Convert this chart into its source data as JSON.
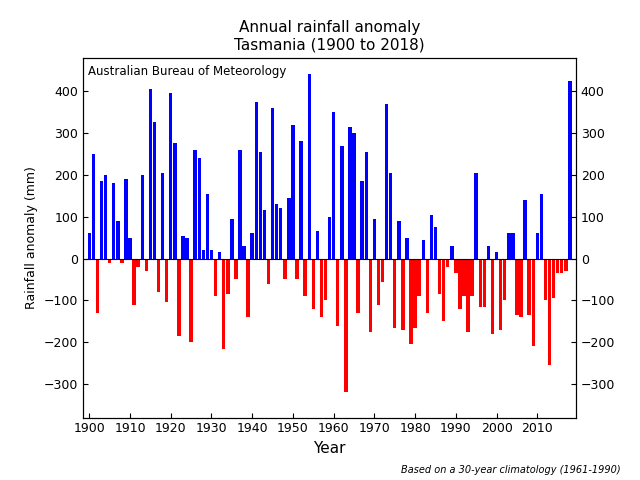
{
  "title": "Annual rainfall anomaly\nTasmania (1900 to 2018)",
  "xlabel": "Year",
  "ylabel": "Rainfall anomaly (mm)",
  "annotation_text": "Australian Bureau of Meteorology",
  "footnote": "Based on a 30-year climatology (1961-1990)",
  "bar_color_positive": "#0000FF",
  "bar_color_negative": "#FF0000",
  "ylim": [
    -380,
    480
  ],
  "yticks": [
    -300,
    -200,
    -100,
    0,
    100,
    200,
    300,
    400
  ],
  "xticks": [
    1900,
    1910,
    1920,
    1930,
    1940,
    1950,
    1960,
    1970,
    1980,
    1990,
    2000,
    2010
  ],
  "values": {
    "1900": 60,
    "1901": 250,
    "1902": -130,
    "1903": 185,
    "1904": 200,
    "1905": -10,
    "1906": 180,
    "1907": 90,
    "1908": -10,
    "1909": 190,
    "1910": 50,
    "1911": -110,
    "1912": -20,
    "1913": 200,
    "1914": -30,
    "1915": 405,
    "1916": 325,
    "1917": -80,
    "1918": 205,
    "1919": -105,
    "1920": 395,
    "1921": 275,
    "1922": -185,
    "1923": 55,
    "1924": 50,
    "1925": -200,
    "1926": 260,
    "1927": 240,
    "1928": 20,
    "1929": 155,
    "1930": 20,
    "1931": -90,
    "1932": 15,
    "1933": -215,
    "1934": -85,
    "1935": 95,
    "1936": -50,
    "1937": 260,
    "1938": 30,
    "1939": -140,
    "1940": 60,
    "1941": 375,
    "1942": 255,
    "1943": 115,
    "1944": -60,
    "1945": 360,
    "1946": 130,
    "1947": 120,
    "1948": -50,
    "1949": 145,
    "1950": 320,
    "1951": -50,
    "1952": 280,
    "1953": -90,
    "1954": 440,
    "1955": -120,
    "1956": 65,
    "1957": -140,
    "1958": -100,
    "1959": 100,
    "1960": 350,
    "1961": -160,
    "1962": 270,
    "1963": -320,
    "1964": 315,
    "1965": 300,
    "1966": -130,
    "1967": 185,
    "1968": 255,
    "1969": -175,
    "1970": 95,
    "1971": -110,
    "1972": -55,
    "1973": 370,
    "1974": 205,
    "1975": -165,
    "1976": 90,
    "1977": -170,
    "1978": 50,
    "1979": -205,
    "1980": -165,
    "1981": -90,
    "1982": 45,
    "1983": -130,
    "1984": 105,
    "1985": 75,
    "1986": -85,
    "1987": -150,
    "1988": -20,
    "1989": 30,
    "1990": -35,
    "1991": -120,
    "1992": -90,
    "1993": -175,
    "1994": -90,
    "1995": 205,
    "1996": -115,
    "1997": -115,
    "1998": 30,
    "1999": -180,
    "2000": 15,
    "2001": -170,
    "2002": -100,
    "2003": 60,
    "2004": 60,
    "2005": -135,
    "2006": -140,
    "2007": 140,
    "2008": -135,
    "2009": -210,
    "2010": 60,
    "2011": 155,
    "2012": -100,
    "2013": -255,
    "2014": -95,
    "2015": -35,
    "2016": -35,
    "2017": -30,
    "2018": 425
  }
}
